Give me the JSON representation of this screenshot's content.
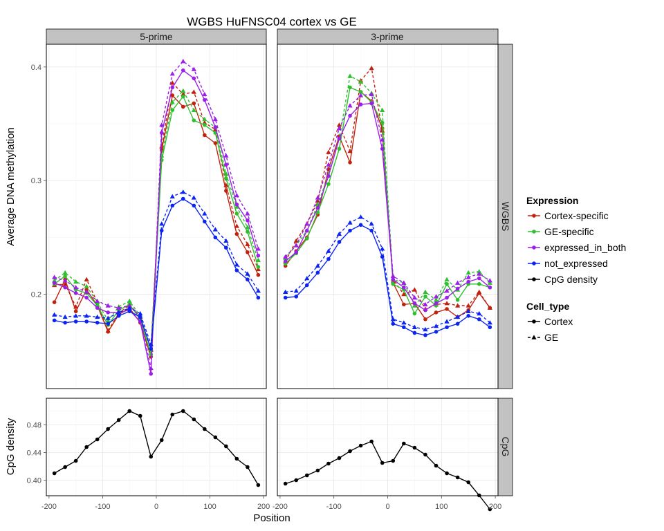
{
  "chart_data": {
    "type": "line",
    "title": "WGBS HuFNSC04 cortex vs GE",
    "xlabel": "Position",
    "x": [
      -190,
      -170,
      -150,
      -130,
      -110,
      -90,
      -70,
      -50,
      -30,
      -10,
      10,
      30,
      50,
      70,
      90,
      110,
      130,
      150,
      170,
      190
    ],
    "xlim": [
      -205,
      205
    ],
    "x_ticks": [
      -200,
      -100,
      0,
      100,
      200
    ],
    "x_tick_labels": [
      "-200",
      "-100",
      "0",
      "100",
      "200"
    ],
    "column_facets": [
      "5-prime",
      "3-prime"
    ],
    "row_facets": [
      "WGBS",
      "CpG"
    ],
    "colors": {
      "Cortex-specific": "#c0220e",
      "GE-specific": "#2fbf2f",
      "expressed_in_both": "#9b1fe8",
      "not_expressed": "#0b24f2",
      "CpG density": "#000000"
    },
    "legend": {
      "position": "right",
      "expression_title": "Expression",
      "expression_items": [
        "Cortex-specific",
        "GE-specific",
        "expressed_in_both",
        "not_expressed",
        "CpG density"
      ],
      "cell_type_title": "Cell_type",
      "cell_type_items": [
        {
          "name": "Cortex",
          "linetype": "solid",
          "shape": "circle"
        },
        {
          "name": "GE",
          "linetype": "dashed",
          "shape": "triangle"
        }
      ]
    },
    "panels": [
      {
        "row": "WGBS",
        "column": "5-prime",
        "ylabel": "Average DNA methylation",
        "ylim": [
          0.117,
          0.42
        ],
        "y_ticks": [
          0.2,
          0.3,
          0.4
        ],
        "y_tick_labels": [
          "0.2",
          "0.3",
          "0.4"
        ],
        "grid": true,
        "series": [
          {
            "expression": "Cortex-specific",
            "cell_type": "Cortex",
            "values": [
              0.193,
              0.213,
              0.185,
              0.204,
              0.19,
              0.167,
              0.182,
              0.188,
              0.175,
              0.145,
              0.327,
              0.375,
              0.365,
              0.368,
              0.34,
              0.333,
              0.291,
              0.253,
              0.237,
              0.217
            ]
          },
          {
            "expression": "Cortex-specific",
            "cell_type": "GE",
            "values": [
              0.208,
              0.209,
              0.189,
              0.213,
              0.193,
              0.168,
              0.183,
              0.191,
              0.18,
              0.151,
              0.33,
              0.386,
              0.376,
              0.378,
              0.351,
              0.345,
              0.296,
              0.26,
              0.244,
              0.222
            ]
          },
          {
            "expression": "GE-specific",
            "cell_type": "Cortex",
            "values": [
              0.209,
              0.216,
              0.204,
              0.201,
              0.19,
              0.173,
              0.186,
              0.191,
              0.178,
              0.147,
              0.318,
              0.362,
              0.374,
              0.353,
              0.349,
              0.342,
              0.302,
              0.271,
              0.255,
              0.224
            ]
          },
          {
            "expression": "GE-specific",
            "cell_type": "GE",
            "values": [
              0.212,
              0.219,
              0.211,
              0.207,
              0.193,
              0.177,
              0.189,
              0.194,
              0.181,
              0.152,
              0.322,
              0.369,
              0.379,
              0.362,
              0.354,
              0.347,
              0.306,
              0.277,
              0.259,
              0.23
            ]
          },
          {
            "expression": "expressed_in_both",
            "cell_type": "Cortex",
            "values": [
              0.21,
              0.206,
              0.201,
              0.197,
              0.188,
              0.184,
              0.184,
              0.186,
              0.176,
              0.13,
              0.342,
              0.382,
              0.397,
              0.39,
              0.371,
              0.347,
              0.314,
              0.279,
              0.265,
              0.234
            ]
          },
          {
            "expression": "expressed_in_both",
            "cell_type": "GE",
            "values": [
              0.215,
              0.212,
              0.206,
              0.202,
              0.194,
              0.19,
              0.188,
              0.19,
              0.18,
              0.135,
              0.349,
              0.394,
              0.405,
              0.398,
              0.376,
              0.354,
              0.322,
              0.287,
              0.271,
              0.24
            ]
          },
          {
            "expression": "not_expressed",
            "cell_type": "Cortex",
            "values": [
              0.177,
              0.175,
              0.176,
              0.176,
              0.175,
              0.174,
              0.181,
              0.185,
              0.18,
              0.152,
              0.256,
              0.278,
              0.284,
              0.278,
              0.264,
              0.25,
              0.241,
              0.221,
              0.213,
              0.197
            ]
          },
          {
            "expression": "not_expressed",
            "cell_type": "GE",
            "values": [
              0.182,
              0.18,
              0.181,
              0.181,
              0.18,
              0.179,
              0.184,
              0.188,
              0.183,
              0.156,
              0.262,
              0.286,
              0.29,
              0.285,
              0.271,
              0.257,
              0.247,
              0.226,
              0.218,
              0.203
            ]
          }
        ]
      },
      {
        "row": "WGBS",
        "column": "3-prime",
        "ylim": [
          0.117,
          0.42
        ],
        "grid": true,
        "series": [
          {
            "expression": "Cortex-specific",
            "cell_type": "Cortex",
            "values": [
              0.225,
              0.238,
              0.25,
              0.27,
              0.31,
              0.339,
              0.316,
              0.378,
              0.37,
              0.346,
              0.21,
              0.191,
              0.192,
              0.178,
              0.184,
              0.187,
              0.18,
              0.186,
              0.201,
              0.188
            ]
          },
          {
            "expression": "Cortex-specific",
            "cell_type": "GE",
            "values": [
              0.229,
              0.247,
              0.262,
              0.282,
              0.325,
              0.349,
              0.326,
              0.388,
              0.399,
              0.344,
              0.213,
              0.2,
              0.204,
              0.187,
              0.191,
              0.192,
              0.19,
              0.19,
              0.202,
              0.188
            ]
          },
          {
            "expression": "GE-specific",
            "cell_type": "Cortex",
            "values": [
              0.227,
              0.236,
              0.249,
              0.272,
              0.297,
              0.328,
              0.382,
              0.378,
              0.369,
              0.351,
              0.209,
              0.204,
              0.183,
              0.198,
              0.19,
              0.209,
              0.195,
              0.209,
              0.209,
              0.206
            ]
          },
          {
            "expression": "GE-specific",
            "cell_type": "GE",
            "values": [
              0.232,
              0.243,
              0.256,
              0.279,
              0.305,
              0.337,
              0.392,
              0.387,
              0.377,
              0.362,
              0.213,
              0.21,
              0.19,
              0.202,
              0.195,
              0.213,
              0.204,
              0.219,
              0.22,
              0.21
            ]
          },
          {
            "expression": "expressed_in_both",
            "cell_type": "Cortex",
            "values": [
              0.229,
              0.237,
              0.256,
              0.276,
              0.304,
              0.337,
              0.357,
              0.367,
              0.368,
              0.328,
              0.213,
              0.206,
              0.192,
              0.186,
              0.192,
              0.197,
              0.205,
              0.211,
              0.214,
              0.206
            ]
          },
          {
            "expression": "expressed_in_both",
            "cell_type": "GE",
            "values": [
              0.233,
              0.243,
              0.262,
              0.285,
              0.314,
              0.346,
              0.366,
              0.375,
              0.376,
              0.336,
              0.216,
              0.21,
              0.197,
              0.191,
              0.198,
              0.203,
              0.21,
              0.215,
              0.218,
              0.212
            ]
          },
          {
            "expression": "not_expressed",
            "cell_type": "Cortex",
            "values": [
              0.197,
              0.198,
              0.208,
              0.219,
              0.231,
              0.246,
              0.256,
              0.261,
              0.256,
              0.233,
              0.174,
              0.171,
              0.166,
              0.164,
              0.167,
              0.171,
              0.174,
              0.181,
              0.178,
              0.171
            ]
          },
          {
            "expression": "not_expressed",
            "cell_type": "GE",
            "values": [
              0.202,
              0.203,
              0.214,
              0.225,
              0.238,
              0.253,
              0.263,
              0.268,
              0.262,
              0.24,
              0.178,
              0.175,
              0.171,
              0.169,
              0.172,
              0.176,
              0.18,
              0.185,
              0.183,
              0.175
            ]
          }
        ]
      },
      {
        "row": "CpG",
        "column": "5-prime",
        "ylabel": "CpG density",
        "ylim": [
          0.3775,
          0.5185
        ],
        "y_ticks": [
          0.4,
          0.44,
          0.48
        ],
        "y_tick_labels": [
          "0.40",
          "0.44",
          "0.48"
        ],
        "grid": true,
        "series": [
          {
            "expression": "CpG density",
            "cell_type": "Cortex",
            "values": [
              0.41,
              0.419,
              0.428,
              0.448,
              0.459,
              0.474,
              0.487,
              0.5,
              0.493,
              0.434,
              0.458,
              0.495,
              0.5,
              0.488,
              0.474,
              0.462,
              0.449,
              0.431,
              0.419,
              0.393
            ]
          }
        ]
      },
      {
        "row": "CpG",
        "column": "3-prime",
        "ylim": [
          0.3775,
          0.5185
        ],
        "grid": true,
        "series": [
          {
            "expression": "CpG density",
            "cell_type": "Cortex",
            "values": [
              0.395,
              0.4,
              0.407,
              0.414,
              0.424,
              0.432,
              0.442,
              0.45,
              0.456,
              0.425,
              0.428,
              0.453,
              0.447,
              0.437,
              0.421,
              0.41,
              0.404,
              0.397,
              0.378,
              0.358
            ]
          }
        ]
      }
    ]
  }
}
